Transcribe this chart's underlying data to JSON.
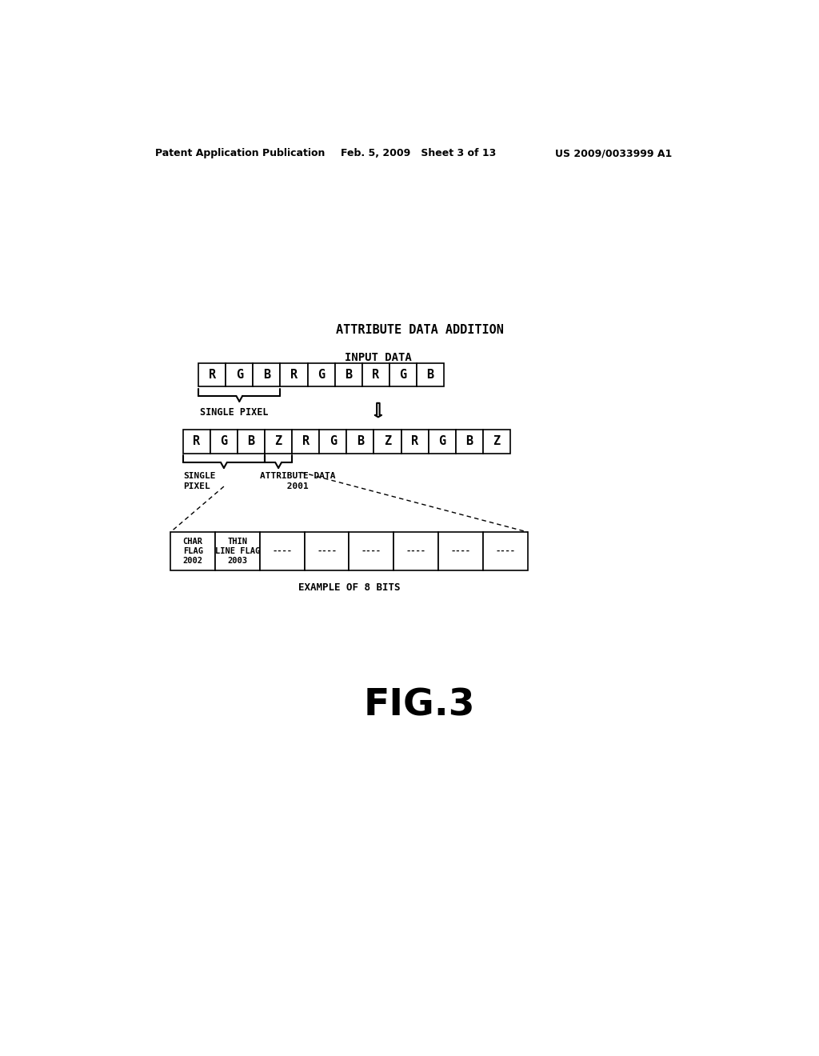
{
  "bg_color": "#ffffff",
  "header_left": "Patent Application Publication",
  "header_mid": "Feb. 5, 2009   Sheet 3 of 13",
  "header_right": "US 2009/0033999 A1",
  "title": "ATTRIBUTE DATA ADDITION",
  "input_label": "INPUT DATA",
  "row1_cells": [
    "R",
    "G",
    "B",
    "R",
    "G",
    "B",
    "R",
    "G",
    "B"
  ],
  "single_pixel_label": "SINGLE PIXEL",
  "row2_cells": [
    "R",
    "G",
    "B",
    "Z",
    "R",
    "G",
    "B",
    "Z",
    "R",
    "G",
    "B",
    "Z"
  ],
  "single_pixel2_label": "SINGLE\nPIXEL",
  "attr_data_label": "ATTRIBUTE DATA\n     2001",
  "bottom_cells": [
    "CHAR\nFLAG\n2002",
    "THIN\nLINE FLAG\n2003",
    "----",
    "----",
    "----",
    "----",
    "----",
    "----"
  ],
  "bottom_label": "EXAMPLE OF 8 BITS",
  "fig_label": "FIG.3"
}
